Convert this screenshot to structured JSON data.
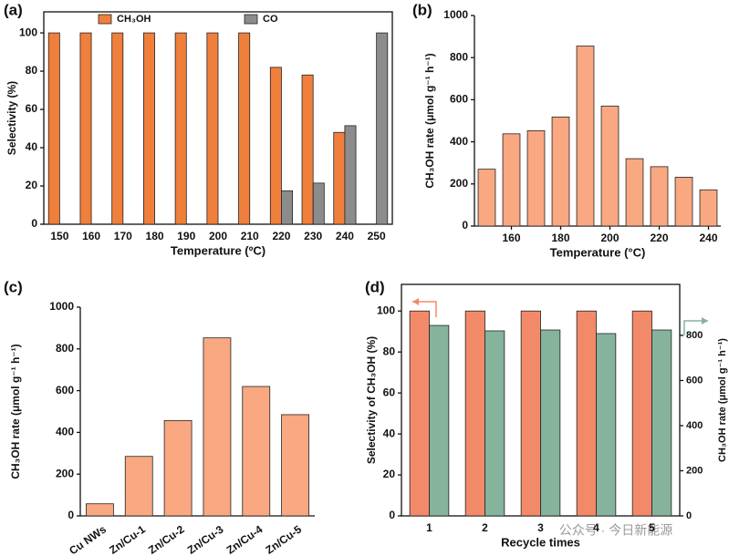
{
  "chart_data": [
    {
      "type": "bar",
      "label": "(a)",
      "x_label": "Temperature (ºC)",
      "y_label": "Selectivity (%)",
      "categories": [
        "150",
        "160",
        "170",
        "180",
        "190",
        "200",
        "210",
        "220",
        "230",
        "240",
        "250"
      ],
      "series": [
        {
          "name": "CH₃OH",
          "color": "#f07f3c",
          "values": [
            100,
            100,
            100,
            100,
            100,
            100,
            100,
            82,
            78,
            48,
            0
          ]
        },
        {
          "name": "CO",
          "color": "#8c8c8c",
          "values": [
            0,
            0,
            0,
            0,
            0,
            0,
            0,
            17.5,
            21.5,
            51.5,
            100
          ]
        }
      ],
      "ylim": [
        0,
        111
      ],
      "yticks": [
        0,
        20,
        40,
        60,
        80,
        100
      ],
      "legend": "top"
    },
    {
      "type": "bar",
      "label": "(b)",
      "x_label": "Temperature (°C)",
      "y_label": "CH₃OH rate (μmol g⁻¹ h⁻¹)",
      "x": [
        150,
        160,
        170,
        180,
        190,
        200,
        210,
        220,
        230,
        240
      ],
      "series": [
        {
          "color": "#f9a882",
          "values": [
            270,
            438,
            453,
            518,
            855,
            570,
            320,
            282,
            232,
            172
          ]
        }
      ],
      "xlim": [
        145,
        245
      ],
      "xticks": [
        160,
        180,
        200,
        220,
        240
      ],
      "ylim": [
        0,
        1000
      ],
      "yticks": [
        0,
        200,
        400,
        600,
        800,
        1000
      ]
    },
    {
      "type": "bar",
      "label": "(c)",
      "y_label": "CH₃OH rate (μmol g⁻¹ h⁻¹)",
      "categories": [
        "Cu NWs",
        "Zn/Cu-1",
        "Zn/Cu-2",
        "Zn/Cu-3",
        "Zn/Cu-4",
        "Zn/Cu-5"
      ],
      "series": [
        {
          "color": "#f9a882",
          "values": [
            58,
            285,
            457,
            853,
            620,
            485
          ]
        }
      ],
      "ylim": [
        0,
        1000
      ],
      "yticks": [
        0,
        200,
        400,
        600,
        800,
        1000
      ]
    },
    {
      "type": "bar",
      "label": "(d)",
      "x_label": "Recycle times",
      "y_label": "Selectivity of CH₃OH (%)",
      "y2_label": "CH₃OH rate (μmol g⁻¹ h⁻¹)",
      "categories": [
        "1",
        "2",
        "3",
        "4",
        "5"
      ],
      "series": [
        {
          "color": "#f28a6a",
          "values": [
            100,
            100,
            100,
            100,
            100
          ]
        },
        {
          "color": "#86b39c",
          "axis": "y2",
          "values": [
            844,
            820,
            824,
            808,
            824
          ]
        }
      ],
      "ylim": [
        0,
        113
      ],
      "yticks": [
        0,
        20,
        40,
        60,
        80,
        100
      ],
      "y2lim": [
        0,
        1026
      ],
      "y2ticks": [
        0,
        200,
        400,
        600,
        800
      ]
    }
  ],
  "watermark": "公众号 · 今日新能源"
}
